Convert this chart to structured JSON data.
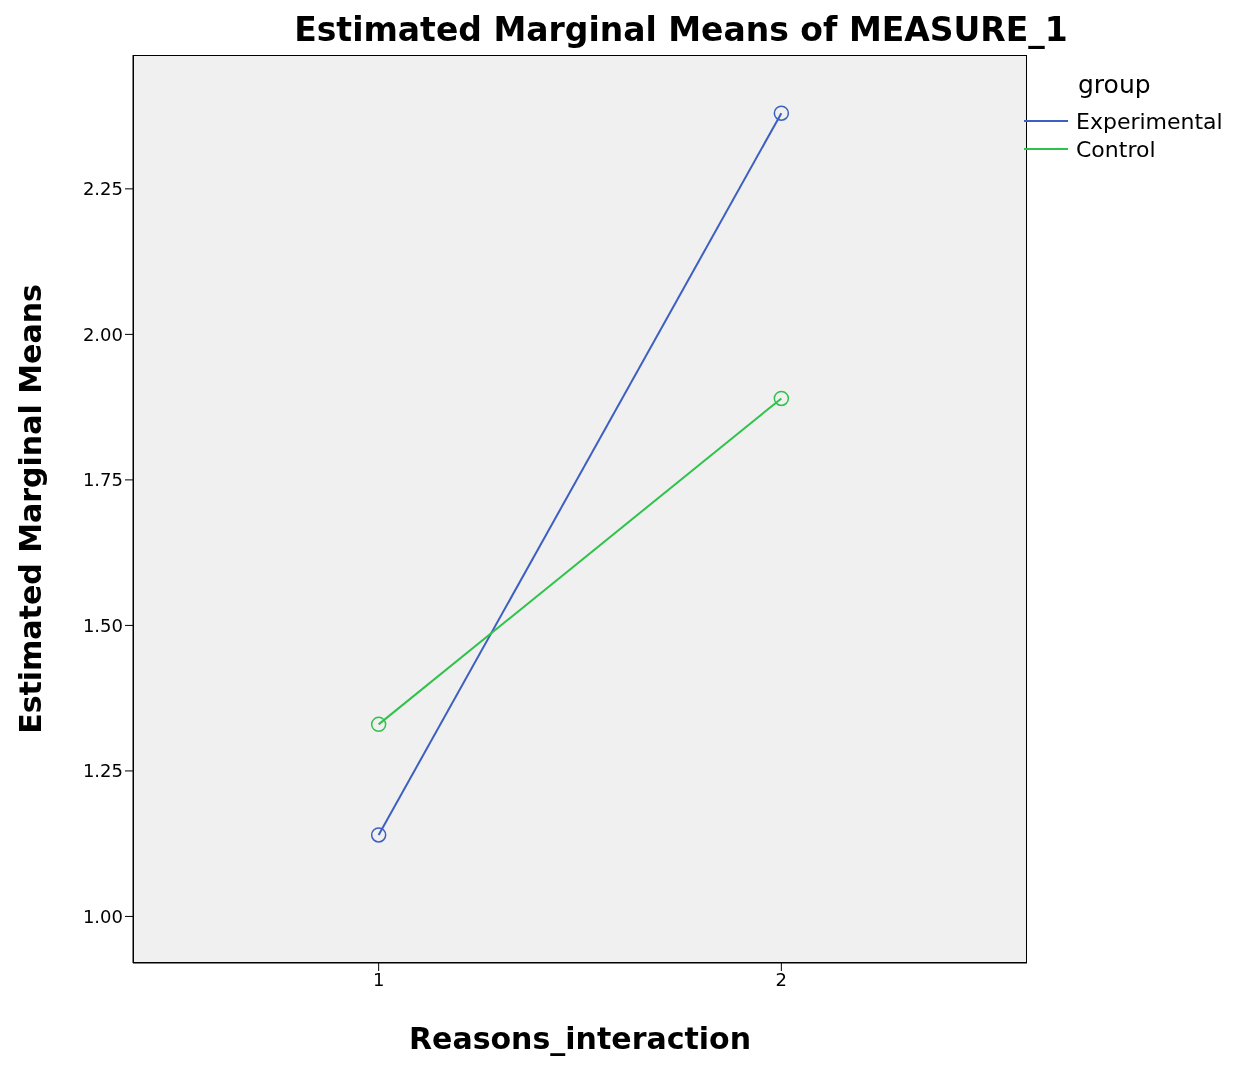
{
  "chart_data": {
    "type": "line",
    "title": "Estimated Marginal Means of MEASURE_1",
    "xlabel": "Reasons_interaction",
    "ylabel": "Estimated Marginal Means",
    "legend_title": "group",
    "x": [
      1,
      2
    ],
    "xlim": [
      0.39,
      2.61
    ],
    "xticks": [
      1,
      2
    ],
    "series": [
      {
        "name": "Experimental",
        "color": "#3d5fbf",
        "values": [
          1.14,
          2.38
        ]
      },
      {
        "name": "Control",
        "color": "#2fc24a",
        "values": [
          1.33,
          1.89
        ]
      }
    ],
    "ylim": [
      0.92,
      2.48
    ],
    "yticks": [
      {
        "value": 1,
        "label": "1.00"
      },
      {
        "value": 1.25,
        "label": "1.25"
      },
      {
        "value": 1.5,
        "label": "1.50"
      },
      {
        "value": 1.75,
        "label": "1.75"
      },
      {
        "value": 2,
        "label": "2.00"
      },
      {
        "value": 2.25,
        "label": "2.25"
      }
    ],
    "grid": false,
    "legend": "top right",
    "marker": "circle",
    "line_style": "solid"
  }
}
